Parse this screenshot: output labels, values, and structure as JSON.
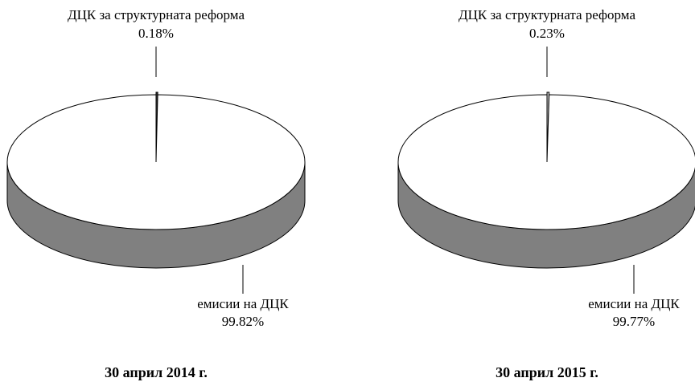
{
  "chart_data": [
    {
      "type": "pie",
      "title": "30 април 2014 г.",
      "categories": [
        "ДЦК за структурната реформа",
        "емисии на ДЦК"
      ],
      "values": [
        0.18,
        99.82
      ],
      "value_labels": [
        "0.18%",
        "99.82%"
      ],
      "colors": [
        "#404040",
        "#ffffff"
      ]
    },
    {
      "type": "pie",
      "title": "30 април 2015 г.",
      "categories": [
        "ДЦК за структурната реформа",
        "емисии на ДЦК"
      ],
      "values": [
        0.23,
        99.77
      ],
      "value_labels": [
        "0.23%",
        "99.77%"
      ],
      "colors": [
        "#c8c8c8",
        "#ffffff"
      ]
    }
  ]
}
